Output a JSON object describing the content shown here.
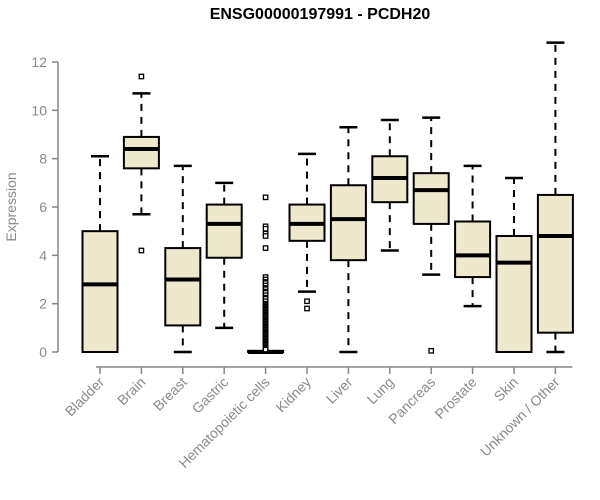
{
  "chart_data": {
    "type": "box",
    "title": "ENSG00000197991 - PCDH20",
    "ylabel": "Expression",
    "xlabel": "",
    "ylim": [
      0,
      12.9
    ],
    "yticks": [
      0,
      2,
      4,
      6,
      8,
      10,
      12
    ],
    "grid": false,
    "legend": "none",
    "x_label_rotation": -45,
    "categories": [
      "Bladder",
      "Brain",
      "Breast",
      "Gastric",
      "Hematopoietic cells",
      "Kidney",
      "Liver",
      "Lung",
      "Pancreas",
      "Prostate",
      "Skin",
      "Unknown / Other"
    ],
    "series": [
      {
        "category": "Bladder",
        "min": 0,
        "q1": 0,
        "median": 2.8,
        "q3": 5.0,
        "max": 8.1,
        "outliers": []
      },
      {
        "category": "Brain",
        "min": 5.7,
        "q1": 7.6,
        "median": 8.4,
        "q3": 8.9,
        "max": 10.7,
        "outliers": [
          11.4,
          4.2
        ]
      },
      {
        "category": "Breast",
        "min": 0,
        "q1": 1.1,
        "median": 3.0,
        "q3": 4.3,
        "max": 7.7,
        "outliers": []
      },
      {
        "category": "Gastric",
        "min": 1.0,
        "q1": 3.9,
        "median": 5.3,
        "q3": 6.1,
        "max": 7.0,
        "outliers": []
      },
      {
        "category": "Hematopoietic cells",
        "min": 0,
        "q1": 0,
        "median": 0,
        "q3": 0.05,
        "max": 0.05,
        "outliers": [
          6.4,
          5.2,
          5.1,
          4.9,
          4.8,
          4.3,
          3.1,
          3.0,
          2.9,
          2.85,
          2.75,
          2.65,
          2.6,
          2.5,
          2.45,
          2.35,
          2.25,
          2.2,
          2.1,
          2.0,
          1.95,
          1.9,
          1.85,
          1.8,
          1.75,
          1.7,
          1.65,
          1.6,
          1.55,
          1.5,
          1.45,
          1.4,
          1.35,
          1.3,
          1.25,
          1.2,
          1.15,
          1.1,
          1.05,
          1.0,
          0.95,
          0.9,
          0.85,
          0.8,
          0.75,
          0.7,
          0.65,
          0.6,
          0.55,
          0.5,
          0.45,
          0.4,
          0.35,
          0.3,
          0.25,
          0.2,
          0.15,
          0.1
        ]
      },
      {
        "category": "Kidney",
        "min": 2.5,
        "q1": 4.6,
        "median": 5.3,
        "q3": 6.1,
        "max": 8.2,
        "outliers": [
          2.1,
          1.8
        ]
      },
      {
        "category": "Liver",
        "min": 0,
        "q1": 3.8,
        "median": 5.5,
        "q3": 6.9,
        "max": 9.3,
        "outliers": []
      },
      {
        "category": "Lung",
        "min": 4.2,
        "q1": 6.2,
        "median": 7.2,
        "q3": 8.1,
        "max": 9.6,
        "outliers": []
      },
      {
        "category": "Pancreas",
        "min": 3.2,
        "q1": 5.3,
        "median": 6.7,
        "q3": 7.4,
        "max": 9.7,
        "outliers": [
          0.05
        ]
      },
      {
        "category": "Prostate",
        "min": 1.9,
        "q1": 3.1,
        "median": 4.0,
        "q3": 5.4,
        "max": 7.7,
        "outliers": []
      },
      {
        "category": "Skin",
        "min": 0,
        "q1": 0,
        "median": 3.7,
        "q3": 4.8,
        "max": 7.2,
        "outliers": []
      },
      {
        "category": "Unknown / Other",
        "min": 0,
        "q1": 0.8,
        "median": 4.8,
        "q3": 6.5,
        "max": 12.8,
        "outliers": []
      }
    ],
    "colors": {
      "background": "#ffffff",
      "box_fill": "#EEE8CD",
      "box_border": "#000000",
      "median": "#000000",
      "whisker": "#000000",
      "outlier_stroke": "#000000",
      "outlier_fill": "#ffffff",
      "axis_line": "#868686",
      "axis_text": "#8a8a8a",
      "title_text": "#000000"
    }
  }
}
